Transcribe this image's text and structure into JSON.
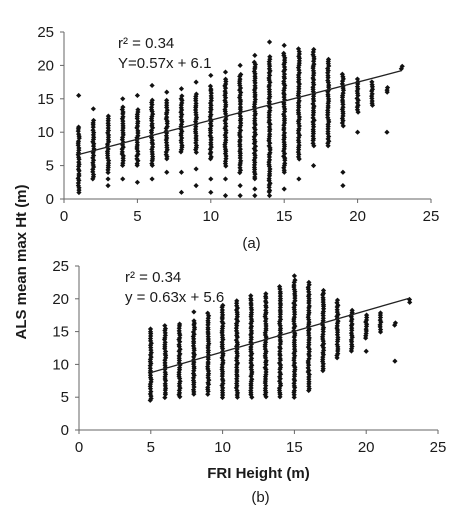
{
  "colors": {
    "marker": "#111111",
    "axis": "#666666",
    "trendline": "#222222"
  },
  "ylabel": "ALS mean max Ht (m)",
  "chart_data": [
    {
      "type": "scatter",
      "panel_label": "(a)",
      "xlabel": "",
      "ylabel": "ALS mean max Ht (m)",
      "xlim": [
        0,
        25
      ],
      "ylim": [
        0,
        25
      ],
      "xticks": [
        "0",
        "5",
        "10",
        "15",
        "20",
        "25"
      ],
      "yticks": [
        "0",
        "5",
        "10",
        "15",
        "20",
        "25"
      ],
      "grid": false,
      "annotations": [
        "r² = 0.34",
        "Y=0.57x + 6.1"
      ],
      "trendline": {
        "slope": 0.57,
        "intercept": 6.1,
        "x_range": [
          1,
          23
        ]
      },
      "columns": [
        {
          "x": 1,
          "y_min": 1,
          "y_max": 11,
          "extra": [
            15.5
          ]
        },
        {
          "x": 2,
          "y_min": 3,
          "y_max": 12,
          "extra": [
            13.5
          ]
        },
        {
          "x": 3,
          "y_min": 4,
          "y_max": 12.5,
          "extra": [
            2,
            3
          ]
        },
        {
          "x": 4,
          "y_min": 5,
          "y_max": 14,
          "extra": [
            15,
            3
          ]
        },
        {
          "x": 5,
          "y_min": 5,
          "y_max": 13.5,
          "extra": [
            15.5,
            2.5
          ]
        },
        {
          "x": 6,
          "y_min": 5,
          "y_max": 15,
          "extra": [
            17,
            3
          ]
        },
        {
          "x": 7,
          "y_min": 6,
          "y_max": 15,
          "extra": [
            16,
            4
          ]
        },
        {
          "x": 8,
          "y_min": 7,
          "y_max": 15.5,
          "extra": [
            16.5,
            4,
            1
          ]
        },
        {
          "x": 9,
          "y_min": 7,
          "y_max": 16,
          "extra": [
            17.5,
            4.5,
            2
          ]
        },
        {
          "x": 10,
          "y_min": 6,
          "y_max": 17,
          "extra": [
            18.5,
            3,
            1
          ]
        },
        {
          "x": 11,
          "y_min": 5,
          "y_max": 18,
          "extra": [
            19,
            3,
            0.5
          ]
        },
        {
          "x": 12,
          "y_min": 4,
          "y_max": 19,
          "extra": [
            20,
            2,
            0.5
          ]
        },
        {
          "x": 13,
          "y_min": 3,
          "y_max": 20.5,
          "extra": [
            21.5,
            1.5,
            0.5
          ]
        },
        {
          "x": 14,
          "y_min": 1,
          "y_max": 21.5,
          "extra": [
            23.5,
            0.5
          ]
        },
        {
          "x": 15,
          "y_min": 4,
          "y_max": 22,
          "extra": [
            23,
            1.5
          ]
        },
        {
          "x": 16,
          "y_min": 6,
          "y_max": 22.5,
          "extra": [
            3
          ]
        },
        {
          "x": 17,
          "y_min": 8,
          "y_max": 22.5,
          "extra": [
            5
          ]
        },
        {
          "x": 18,
          "y_min": 8,
          "y_max": 21,
          "extra": []
        },
        {
          "x": 19,
          "y_min": 11,
          "y_max": 19,
          "extra": [
            2,
            4
          ]
        },
        {
          "x": 20,
          "y_min": 13,
          "y_max": 18,
          "extra": [
            10
          ]
        },
        {
          "x": 21,
          "y_min": 14,
          "y_max": 17.5,
          "extra": []
        },
        {
          "x": 22,
          "y_min": 16,
          "y_max": 17,
          "extra": [
            10
          ]
        },
        {
          "x": 23,
          "y_min": 19.5,
          "y_max": 20,
          "extra": []
        }
      ]
    },
    {
      "type": "scatter",
      "panel_label": "(b)",
      "xlabel": "FRI Height (m)",
      "ylabel": "ALS mean max Ht (m)",
      "xlim": [
        0,
        25
      ],
      "ylim": [
        0,
        25
      ],
      "xticks": [
        "0",
        "5",
        "10",
        "15",
        "20",
        "25"
      ],
      "yticks": [
        "0",
        "5",
        "10",
        "15",
        "20",
        "25"
      ],
      "grid": false,
      "annotations": [
        "r² = 0.34",
        "y = 0.63x + 5.6"
      ],
      "trendline": {
        "slope": 0.63,
        "intercept": 5.6,
        "x_range": [
          5,
          23
        ]
      },
      "columns": [
        {
          "x": 5,
          "y_min": 4.5,
          "y_max": 15.5,
          "extra": []
        },
        {
          "x": 6,
          "y_min": 5,
          "y_max": 16,
          "extra": []
        },
        {
          "x": 7,
          "y_min": 5,
          "y_max": 16.5,
          "extra": []
        },
        {
          "x": 8,
          "y_min": 5.5,
          "y_max": 17,
          "extra": [
            18
          ]
        },
        {
          "x": 9,
          "y_min": 5.5,
          "y_max": 18,
          "extra": []
        },
        {
          "x": 10,
          "y_min": 5,
          "y_max": 19,
          "extra": []
        },
        {
          "x": 11,
          "y_min": 5,
          "y_max": 20,
          "extra": []
        },
        {
          "x": 12,
          "y_min": 5,
          "y_max": 20.5,
          "extra": []
        },
        {
          "x": 13,
          "y_min": 5,
          "y_max": 21,
          "extra": []
        },
        {
          "x": 14,
          "y_min": 5,
          "y_max": 22,
          "extra": []
        },
        {
          "x": 15,
          "y_min": 5,
          "y_max": 23,
          "extra": [
            23.5
          ]
        },
        {
          "x": 16,
          "y_min": 6,
          "y_max": 22.5,
          "extra": []
        },
        {
          "x": 17,
          "y_min": 9,
          "y_max": 21.5,
          "extra": []
        },
        {
          "x": 18,
          "y_min": 11,
          "y_max": 20,
          "extra": []
        },
        {
          "x": 19,
          "y_min": 12,
          "y_max": 18.5,
          "extra": []
        },
        {
          "x": 20,
          "y_min": 14,
          "y_max": 17.5,
          "extra": [
            12
          ]
        },
        {
          "x": 21,
          "y_min": 15,
          "y_max": 18,
          "extra": []
        },
        {
          "x": 22,
          "y_min": 16,
          "y_max": 16.5,
          "extra": [
            10.5
          ]
        },
        {
          "x": 23,
          "y_min": 19.5,
          "y_max": 20,
          "extra": []
        }
      ]
    }
  ]
}
